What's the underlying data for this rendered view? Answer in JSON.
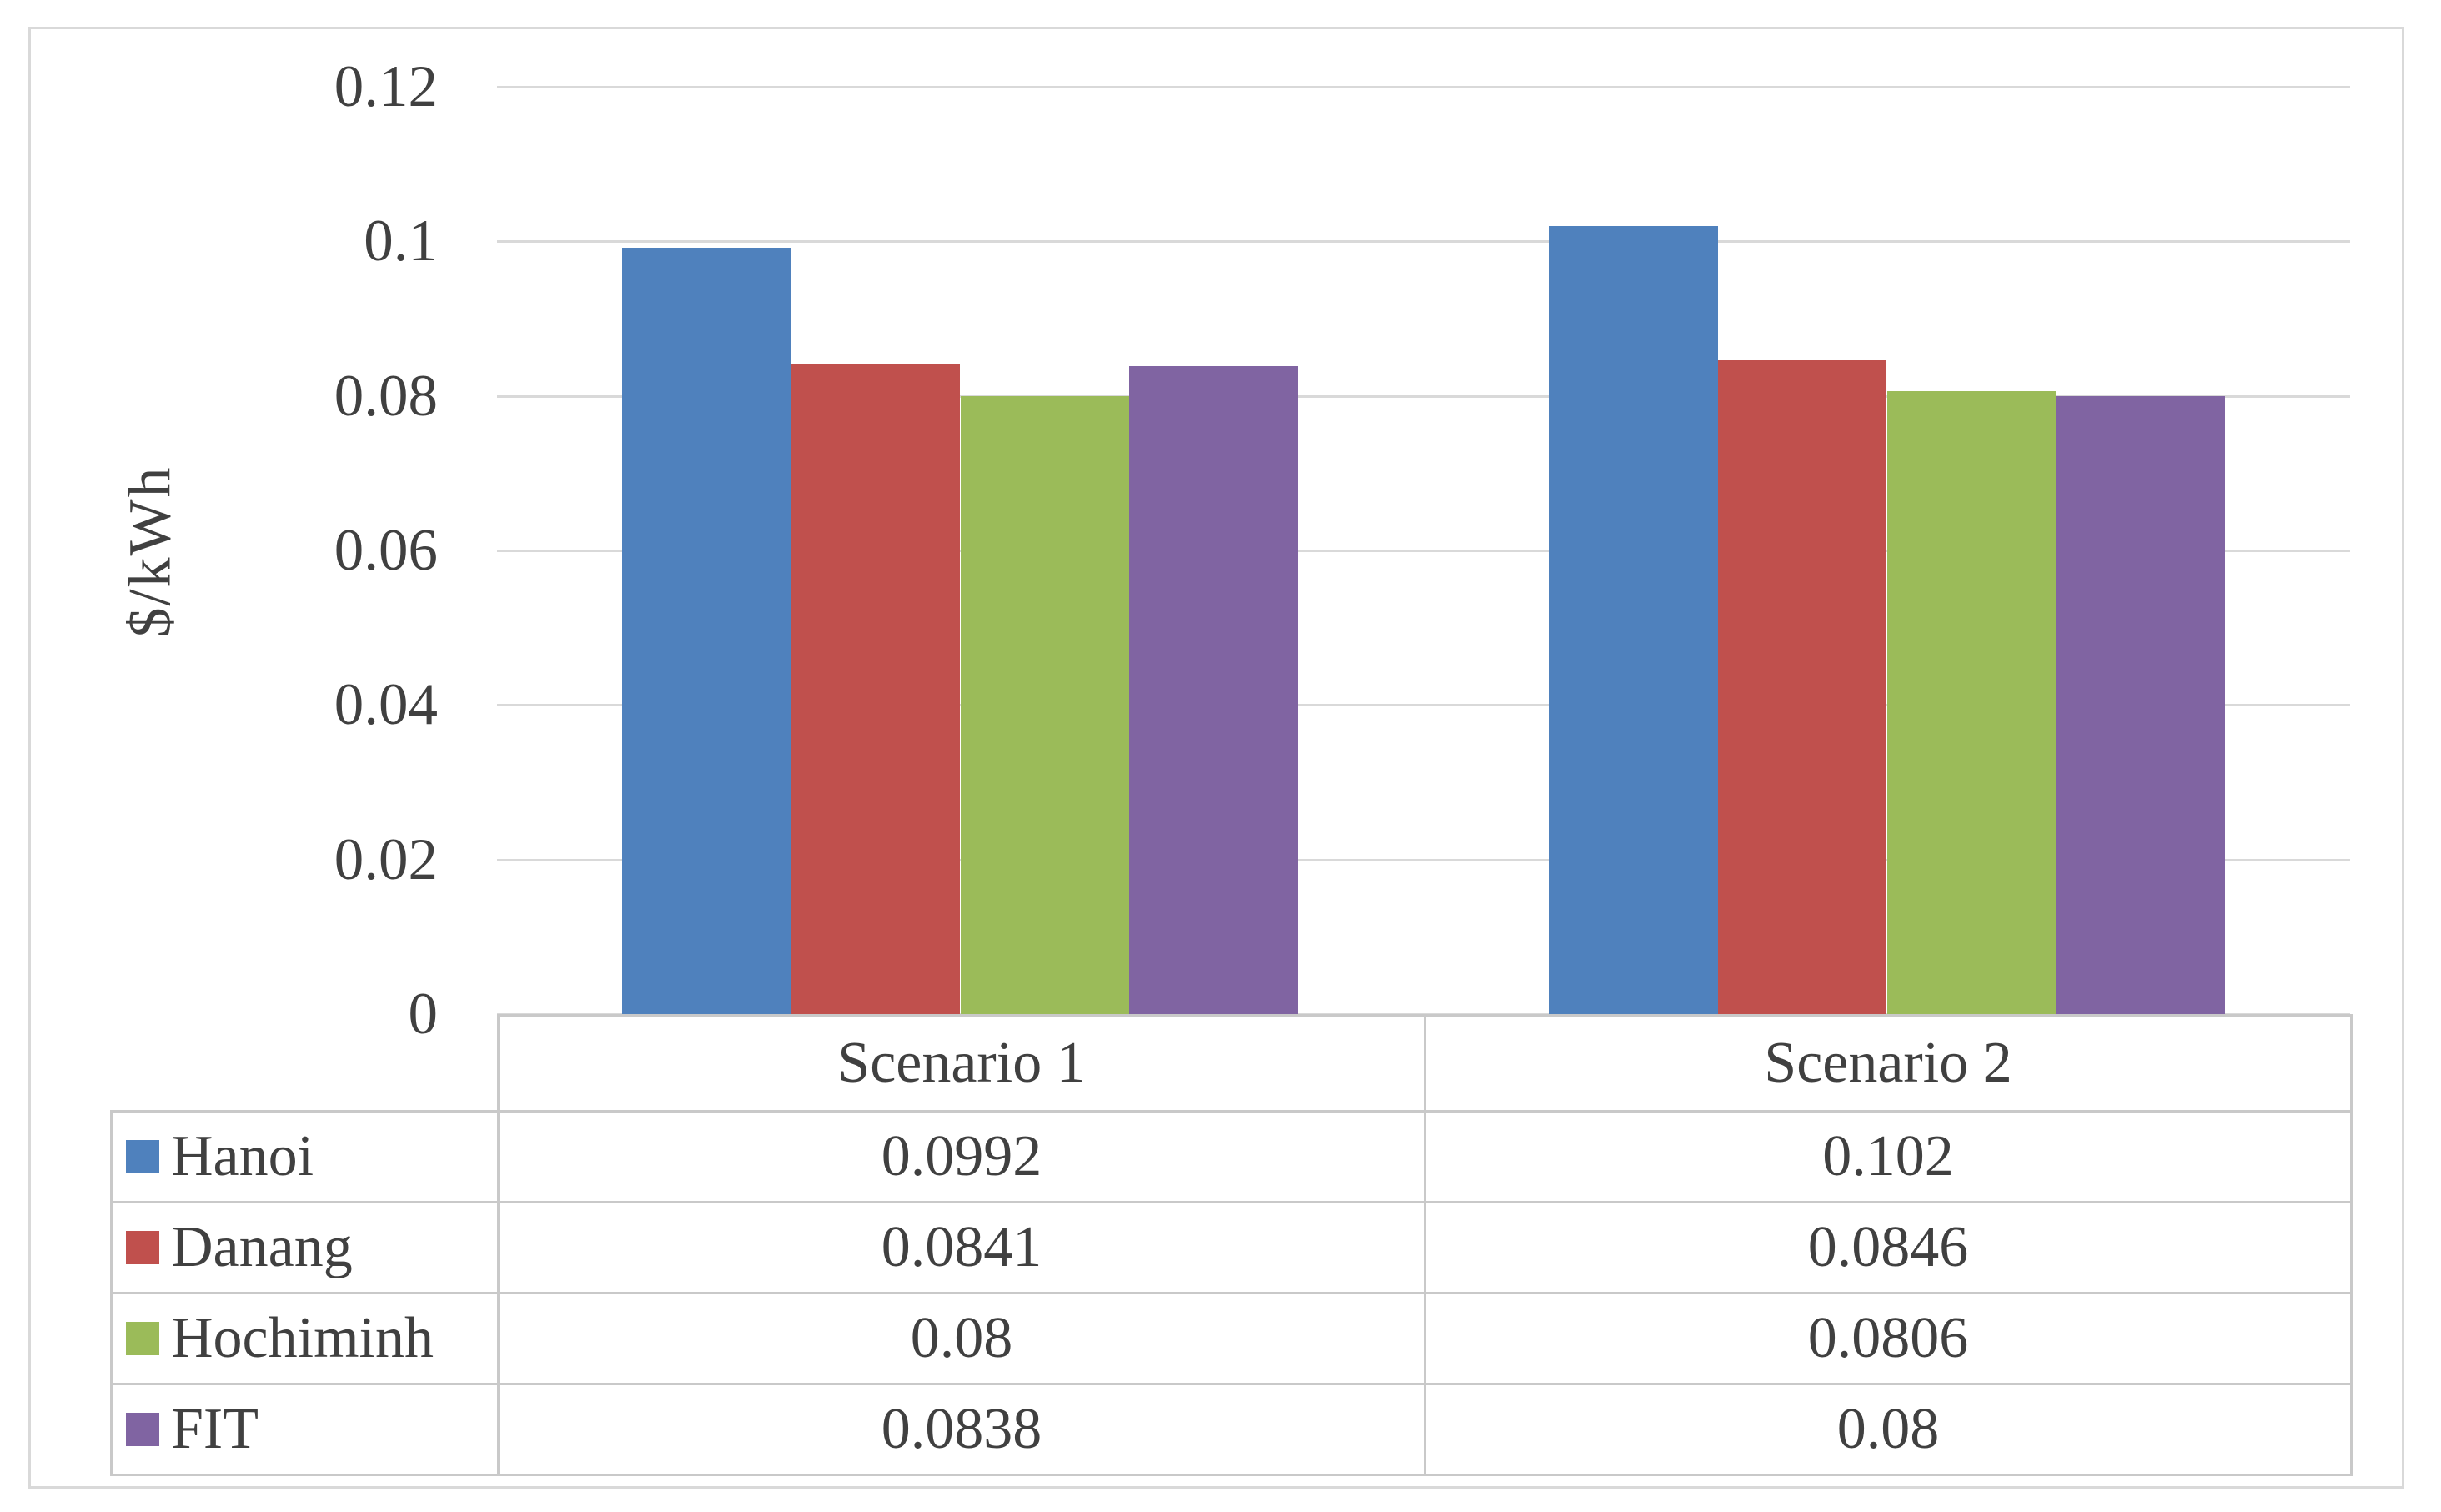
{
  "chart_data": {
    "type": "bar",
    "title": "",
    "xlabel": "",
    "ylabel": "$/kWh",
    "categories": [
      "Scenario 1",
      "Scenario 2"
    ],
    "series": [
      {
        "name": "Hanoi",
        "color": "#4F81BD",
        "values": [
          0.0992,
          0.102
        ],
        "display": [
          "0.0992",
          "0.102"
        ]
      },
      {
        "name": "Danang",
        "color": "#C0504D",
        "values": [
          0.0841,
          0.0846
        ],
        "display": [
          "0.0841",
          "0.0846"
        ]
      },
      {
        "name": "Hochiminh",
        "color": "#9BBB59",
        "values": [
          0.08,
          0.0806
        ],
        "display": [
          "0.08",
          "0.0806"
        ]
      },
      {
        "name": "FIT",
        "color": "#8064A2",
        "values": [
          0.0838,
          0.08
        ],
        "display": [
          "0.0838",
          "0.08"
        ]
      }
    ],
    "ylim": [
      0,
      0.12
    ],
    "yticks": [
      {
        "value": 0.12,
        "label": "0.12"
      },
      {
        "value": 0.1,
        "label": "0.1"
      },
      {
        "value": 0.08,
        "label": "0.08"
      },
      {
        "value": 0.06,
        "label": "0.06"
      },
      {
        "value": 0.04,
        "label": "0.04"
      },
      {
        "value": 0.02,
        "label": "0.02"
      },
      {
        "value": 0,
        "label": "0"
      }
    ],
    "grid": true,
    "legend_position": "table-left-column",
    "colors": {
      "gridline": "#D9D9D9",
      "table_border": "#C9C9C9",
      "text": "#404040",
      "figure_border": "#D9D9D9",
      "background": "#FFFFFF"
    }
  }
}
